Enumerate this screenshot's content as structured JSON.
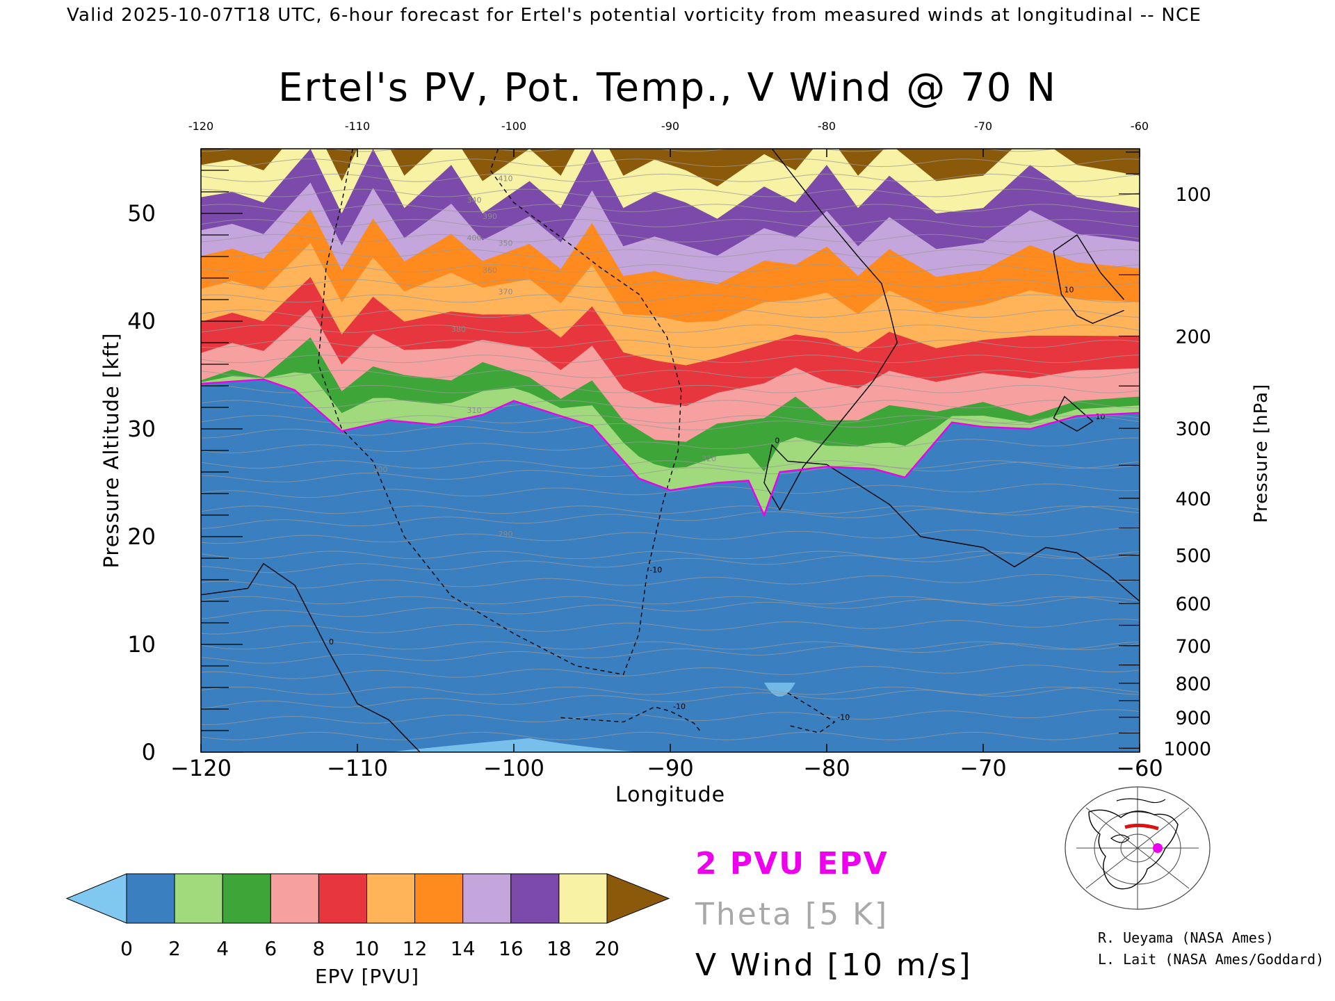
{
  "header": "Valid 2025-10-07T18 UTC, 6-hour forecast for Ertel's potential vorticity from measured winds at longitudinal -- NCE",
  "chart_data": {
    "type": "heatmap",
    "title": "Ertel's PV, Pot. Temp., V Wind @ 70 N",
    "xlabel": "Longitude",
    "ylabel_left": "Pressure Altitude [kft]",
    "ylabel_right": "Pressure [hPa]",
    "xlim": [
      -120,
      -60
    ],
    "ylim": [
      0,
      56
    ],
    "x_ticks": [
      -120,
      -110,
      -100,
      -90,
      -80,
      -70,
      -60
    ],
    "x_tick_labels": [
      "−120",
      "−110",
      "−100",
      "−90",
      "−80",
      "−70",
      "−60"
    ],
    "top_tick_labels": [
      "-120",
      "-110",
      "-100",
      "-90",
      "-80",
      "-70",
      "-60"
    ],
    "y_ticks": [
      0,
      10,
      20,
      30,
      40,
      50
    ],
    "y_tick_labels": [
      "0",
      "10",
      "20",
      "30",
      "40",
      "50"
    ],
    "pressure_ticks": [
      {
        "hpa": 100,
        "label": "100"
      },
      {
        "hpa": 200,
        "label": "200"
      },
      {
        "hpa": 300,
        "label": "300"
      },
      {
        "hpa": 400,
        "label": "400"
      },
      {
        "hpa": 500,
        "label": "500"
      },
      {
        "hpa": 600,
        "label": "600"
      },
      {
        "hpa": 700,
        "label": "700"
      },
      {
        "hpa": 800,
        "label": "800"
      },
      {
        "hpa": 900,
        "label": "900"
      },
      {
        "hpa": 1000,
        "label": "1000"
      }
    ],
    "pv_levels": [
      0,
      2,
      4,
      6,
      8,
      10,
      12,
      14,
      16,
      18,
      20
    ],
    "pv_colors": [
      "#3a7fc0",
      "#a0da7c",
      "#3ea639",
      "#f6a0a0",
      "#e8363e",
      "#ffb45a",
      "#ff8a1e",
      "#c4a6dc",
      "#7c4aaa",
      "#f8f2a4"
    ],
    "under_color": "#80c8f0",
    "over_color": "#8a5a0a",
    "tropopause_2pvu_kft": {
      "lon": [
        -120,
        -116,
        -114,
        -111,
        -108,
        -105,
        -102,
        -100,
        -97,
        -95,
        -92,
        -90,
        -87,
        -85,
        -84,
        -83,
        -80,
        -77,
        -75,
        -72,
        -70,
        -67,
        -64,
        -60
      ],
      "kft": [
        34.2,
        34.6,
        33.6,
        29.8,
        30.8,
        30.4,
        31.3,
        32.6,
        31.2,
        30.3,
        25.4,
        24.3,
        25.0,
        25.2,
        22.0,
        26.0,
        26.5,
        26.3,
        25.5,
        30.6,
        30.2,
        30.0,
        31.2,
        31.5
      ]
    },
    "pv_crest_profile_kft": {
      "lon": [
        -120,
        -118,
        -116,
        -113,
        -111,
        -109,
        -107,
        -104,
        -102,
        -99,
        -97,
        -95,
        -93,
        -91,
        -89,
        -87,
        -84,
        -82,
        -80,
        -78,
        -76,
        -73,
        -70,
        -67,
        -64,
        -60
      ],
      "kft": [
        34.5,
        35.5,
        34.8,
        38.5,
        33.5,
        35.8,
        35.0,
        34.5,
        36.2,
        34.8,
        32.8,
        34.5,
        30.8,
        29.0,
        28.8,
        30.5,
        31.0,
        33.0,
        30.8,
        30.8,
        32.2,
        31.6,
        32.5,
        31.2,
        32.6,
        33.0
      ]
    },
    "pv_peak_profile_kft": {
      "lon": [
        -120,
        -118,
        -116,
        -113,
        -111,
        -109,
        -107,
        -104,
        -102,
        -99,
        -97,
        -95,
        -93,
        -91,
        -89,
        -87,
        -84,
        -82,
        -80,
        -78,
        -76,
        -73,
        -70,
        -67,
        -64,
        -60
      ],
      "kft": [
        51.5,
        52.0,
        51.0,
        56.0,
        50.0,
        56.0,
        50.5,
        54.5,
        50.0,
        53.0,
        50.5,
        56.0,
        50.5,
        52.0,
        51.0,
        49.5,
        52.5,
        51.0,
        54.5,
        50.5,
        53.5,
        50.0,
        50.5,
        54.5,
        51.5,
        50.5
      ]
    },
    "v_wind_contours_m_s": [
      {
        "level": "0",
        "lon": [
          -120,
          -117,
          -116,
          -114,
          -112,
          -110,
          -108,
          -106
        ],
        "kft": [
          14.6,
          15.2,
          17.5,
          15.5,
          9.8,
          4.5,
          3.0,
          0
        ]
      },
      {
        "level": "-10",
        "lon": [
          -110.3,
          -111,
          -112,
          -112.5,
          -111,
          -109,
          -107,
          -104,
          -100,
          -96,
          -93,
          -92,
          -91.5,
          -90.5,
          -89.5,
          -89.3,
          -90.2,
          -92,
          -94.5,
          -97,
          -100,
          -101.5,
          -101,
          -98.5
        ],
        "kft": [
          56,
          51,
          45,
          36,
          30,
          27,
          20,
          14.5,
          11,
          8,
          7.2,
          11,
          16.5,
          23,
          28,
          33.5,
          38.5,
          42.5,
          45,
          47.8,
          51,
          54,
          56,
          56
        ]
      },
      {
        "level": "0",
        "lon": [
          -83.5,
          -80,
          -78,
          -76.5,
          -76,
          -75.5,
          -77,
          -79.5,
          -81.5,
          -83,
          -84,
          -83.5,
          -82.5,
          -80,
          -76,
          -74,
          -70,
          -68,
          -66,
          -64,
          -62,
          -60
        ],
        "kft": [
          56,
          49.5,
          46,
          43.5,
          41,
          38,
          34.5,
          30,
          26.5,
          22.5,
          25,
          28.5,
          27,
          26.7,
          23,
          20,
          19,
          17.2,
          19,
          18.5,
          16.5,
          14
        ]
      },
      {
        "level": "-10",
        "lon": [
          -97,
          -93,
          -91,
          -90,
          -88.5,
          -88
        ],
        "kft": [
          3.2,
          2.8,
          4.2,
          3.8,
          2.7,
          1.8
        ]
      },
      {
        "level": "-10",
        "lon": [
          -82.5,
          -81,
          -79.5,
          -80.5,
          -82.5
        ],
        "kft": [
          5.5,
          4.2,
          2.8,
          1.8,
          2.5
        ]
      },
      {
        "level": "10",
        "lon": [
          -61,
          -62.5,
          -64,
          -65.5,
          -65,
          -64,
          -63,
          -61
        ],
        "kft": [
          42,
          44.5,
          48,
          46.5,
          42.5,
          40.5,
          39.8,
          41
        ]
      },
      {
        "level": "10",
        "lon": [
          -65.5,
          -64.8,
          -63,
          -64,
          -65.5
        ],
        "kft": [
          31,
          33,
          30.7,
          29.8,
          31
        ]
      }
    ],
    "theta_labels": [
      "320",
      "310",
      "300",
      "290",
      "380",
      "370",
      "360",
      "350",
      "340",
      "410",
      "400",
      "390"
    ],
    "colorbar_tick_labels": [
      "0",
      "2",
      "4",
      "6",
      "8",
      "10",
      "12",
      "14",
      "16",
      "18",
      "20"
    ],
    "colorbar_label": "EPV [PVU]",
    "legend": {
      "pv": "2 PVU EPV",
      "theta": "Theta [5 K]",
      "wind": "V Wind [10 m/s]",
      "pv_color": "#ee00ee",
      "theta_color": "#a8a8a8",
      "wind_color": "#000000"
    }
  },
  "credits": [
    "R. Ueyama (NASA Ames)",
    "L. Lait (NASA Ames/Goddard)"
  ]
}
